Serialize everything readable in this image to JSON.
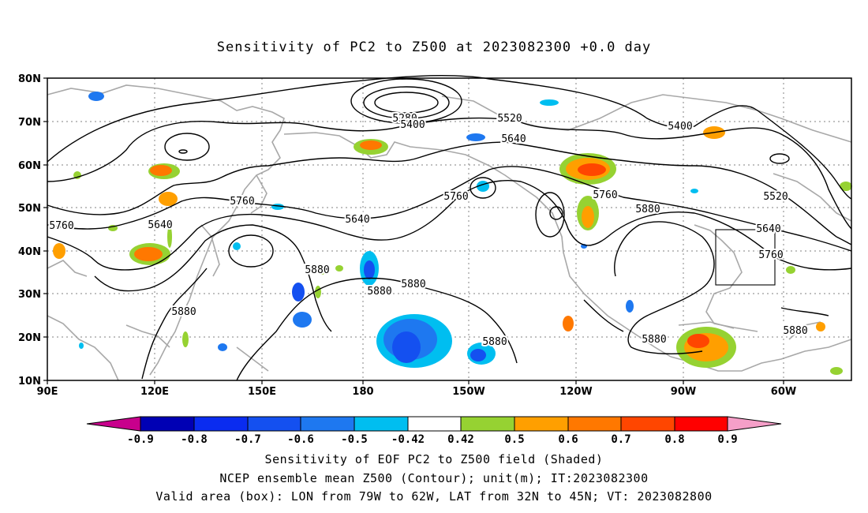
{
  "title": "Sensitivity of PC2 to Z500 at 2023082300 +0.0 day",
  "lat_labels": [
    "80N",
    "70N",
    "60N",
    "50N",
    "40N",
    "30N",
    "20N",
    "10N"
  ],
  "lon_labels": [
    "90E",
    "120E",
    "150E",
    "180",
    "150W",
    "120W",
    "90W",
    "60W"
  ],
  "contour_labels": {
    "c5280": "5280",
    "c5400a": "5400",
    "c5520a": "5520",
    "c5640a": "5640",
    "c5400b": "5400",
    "c5760a": "5760",
    "c5640b": "5640",
    "c5760b": "5760",
    "c5640c": "5640",
    "c5760c": "5760",
    "c5760d": "5760",
    "c5880a": "5880",
    "c5520b": "5520",
    "c5640d": "5640",
    "c5760e": "5760",
    "c5880b": "5880",
    "c5880c": "5880",
    "c5880d": "5880",
    "c5880e": "5880",
    "c5880f": "5880",
    "c5880g": "5880",
    "c5880h": "5880"
  },
  "colorbar": {
    "labels": [
      "-0.9",
      "-0.8",
      "-0.7",
      "-0.6",
      "-0.5",
      "-0.42",
      "0.42",
      "0.5",
      "0.6",
      "0.7",
      "0.8",
      "0.9"
    ],
    "colors": [
      "#0000b4",
      "#0a2cf0",
      "#1450f0",
      "#1e78f0",
      "#00bef0",
      "#ffffff",
      "#96d232",
      "#ff9f00",
      "#ff7800",
      "#ff4600",
      "#ff0000"
    ],
    "left_arrow_color": "#c8008c",
    "right_arrow_color": "#f59fc8"
  },
  "captions": {
    "line1": "Sensitivity of EOF PC2 to Z500 field (Shaded)",
    "line2": "NCEP ensemble mean Z500 (Contour); unit(m); IT:2023082300",
    "line3": "Valid area (box): LON from 79W to 62W, LAT from 32N to 45N; VT: 2023082800"
  }
}
